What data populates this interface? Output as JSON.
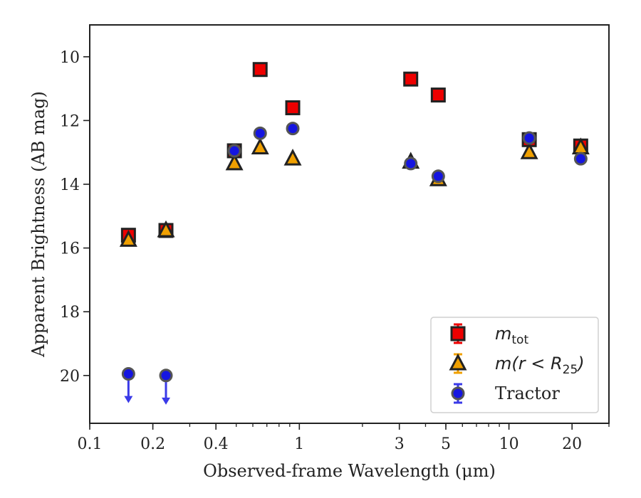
{
  "chart_data": {
    "type": "scatter",
    "xlabel": "Observed-frame Wavelength (μm)",
    "ylabel": "Apparent Brightness (AB mag)",
    "xscale": "log",
    "xlim": [
      0.1,
      30
    ],
    "ylim": [
      21.5,
      9
    ],
    "y_inverted": true,
    "xticks": [
      0.1,
      0.2,
      0.4,
      1,
      3,
      5,
      10,
      20
    ],
    "xtick_labels": [
      "0.1",
      "0.2",
      "0.4",
      "1",
      "3",
      "5",
      "10",
      "20"
    ],
    "yticks": [
      10,
      12,
      14,
      16,
      18,
      20
    ],
    "ytick_labels": [
      "10",
      "12",
      "14",
      "16",
      "18",
      "20"
    ],
    "legend_position": "lower-right",
    "series": [
      {
        "name": "m_tot",
        "legend_main": "m",
        "legend_sub": "tot",
        "marker": "square",
        "face_color": "#ee0000",
        "edge_color": "#222222",
        "x": [
          0.153,
          0.231,
          0.49,
          0.65,
          0.93,
          3.4,
          4.6,
          12.5,
          22.0
        ],
        "y": [
          15.6,
          15.45,
          12.95,
          10.4,
          11.6,
          10.7,
          11.2,
          12.6,
          12.8
        ]
      },
      {
        "name": "m(r < R25)",
        "legend_main": "m(r < R",
        "legend_sub": "25",
        "legend_tail": ")",
        "marker": "triangle",
        "face_color": "#f0a000",
        "edge_color": "#222222",
        "x": [
          0.153,
          0.231,
          0.49,
          0.65,
          0.93,
          3.4,
          4.6,
          12.5,
          22.0
        ],
        "y": [
          15.75,
          15.45,
          13.35,
          12.85,
          13.2,
          13.3,
          13.85,
          13.0,
          12.85
        ]
      },
      {
        "name": "Tractor",
        "legend_main": "Tractor",
        "marker": "circle",
        "face_color": "#1515e0",
        "edge_color": "#555555",
        "x": [
          0.153,
          0.231,
          0.49,
          0.65,
          0.93,
          3.4,
          4.6,
          12.5,
          22.0
        ],
        "y": [
          19.95,
          20.0,
          12.95,
          12.4,
          12.25,
          13.35,
          13.75,
          12.55,
          13.2
        ],
        "upper_limit": [
          true,
          true,
          false,
          false,
          false,
          false,
          false,
          false,
          false
        ]
      }
    ]
  }
}
